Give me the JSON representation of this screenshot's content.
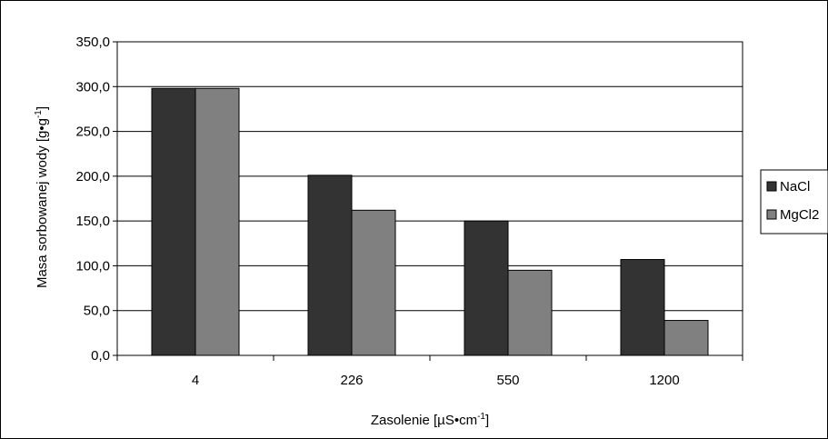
{
  "chart_data": {
    "type": "bar",
    "categories": [
      "4",
      "226",
      "550",
      "1200"
    ],
    "series": [
      {
        "name": "NaCl",
        "values": [
          298.0,
          201.0,
          150.0,
          107.0
        ],
        "color": "#333333"
      },
      {
        "name": "MgCl2",
        "values": [
          298.0,
          162.0,
          95.0,
          39.0
        ],
        "color": "#808080"
      }
    ],
    "ylabel_main": "Masa sorbowanej wody [g•g",
    "ylabel_sup": "-1",
    "ylabel_end": "]",
    "xlabel_main": "Zasolenie [µS•cm",
    "xlabel_sup": "-1",
    "xlabel_end": "]",
    "ylim": [
      0,
      350
    ],
    "yticks": [
      "0,0",
      "50,0",
      "100,0",
      "150,0",
      "200,0",
      "250,0",
      "300,0",
      "350,0"
    ],
    "grid": true,
    "legend_position": "right"
  }
}
